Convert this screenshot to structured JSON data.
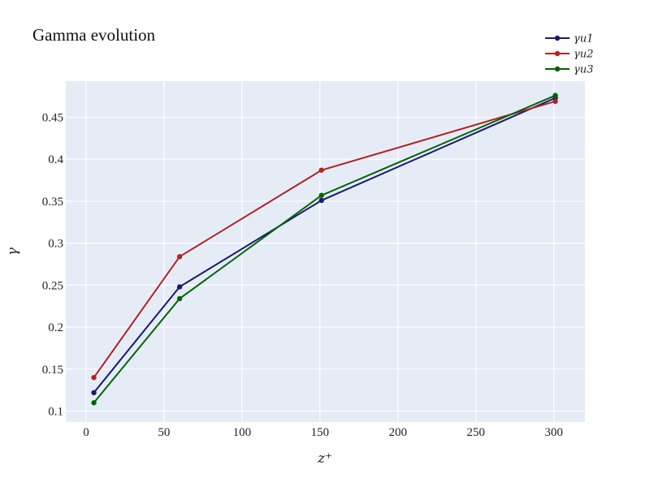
{
  "chart_data": {
    "type": "line",
    "title": "Gamma evolution",
    "xlabel": "z⁺",
    "ylabel": "γ",
    "xlim": [
      -13,
      320
    ],
    "ylim": [
      0.087,
      0.493
    ],
    "x_ticks": [
      0,
      50,
      100,
      150,
      200,
      250,
      300
    ],
    "x_tick_labels": [
      "0",
      "50",
      "100",
      "150",
      "200",
      "250",
      "300"
    ],
    "y_ticks": [
      0.1,
      0.15,
      0.2,
      0.25,
      0.3,
      0.35,
      0.4,
      0.45
    ],
    "y_tick_labels": [
      "0.1",
      "0.15",
      "0.2",
      "0.25",
      "0.3",
      "0.35",
      "0.4",
      "0.45"
    ],
    "grid": true,
    "legend_position": "top-right",
    "series": [
      {
        "name": "γu1",
        "color": "#191970",
        "x": [
          5,
          60,
          151,
          301
        ],
        "y": [
          0.122,
          0.248,
          0.351,
          0.473
        ]
      },
      {
        "name": "γu2",
        "color": "#b22222",
        "x": [
          5,
          60,
          151,
          301
        ],
        "y": [
          0.14,
          0.284,
          0.387,
          0.469
        ]
      },
      {
        "name": "γu3",
        "color": "#006400",
        "x": [
          5,
          60,
          151,
          301
        ],
        "y": [
          0.11,
          0.234,
          0.357,
          0.476
        ]
      }
    ]
  },
  "colors": {
    "plot_background": "#e5ecf6",
    "grid": "#ffffff"
  }
}
